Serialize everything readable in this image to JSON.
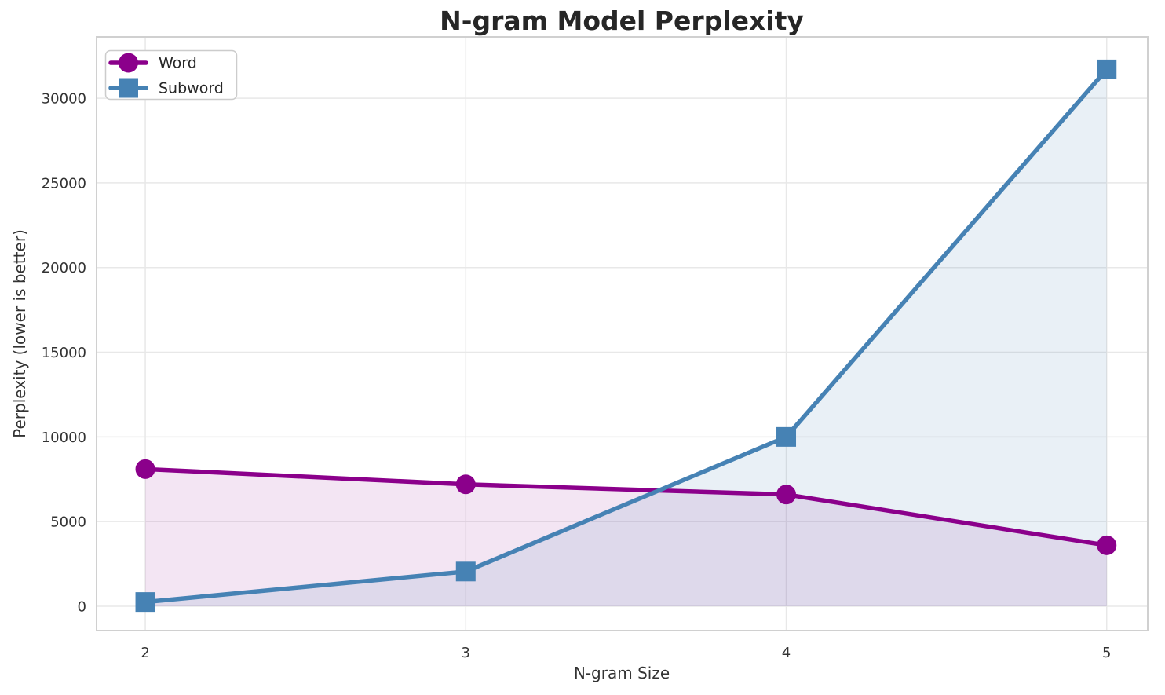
{
  "chart_data": {
    "type": "line",
    "title": "N-gram Model Perplexity",
    "xlabel": "N-gram Size",
    "ylabel": "Perplexity (lower is better)",
    "x": [
      2,
      3,
      4,
      5
    ],
    "series": [
      {
        "name": "Word",
        "marker": "circle",
        "color": "#8B008B",
        "fill_alpha": 0.1,
        "values": [
          8100,
          7200,
          6600,
          3600
        ]
      },
      {
        "name": "Subword",
        "marker": "square",
        "color": "#4682B4",
        "fill_alpha": 0.12,
        "values": [
          250,
          2050,
          10000,
          31700
        ]
      }
    ],
    "xticks": [
      "2",
      "3",
      "4",
      "5"
    ],
    "xtick_values": [
      2,
      3,
      4,
      5
    ],
    "yticks": [
      "0",
      "5000",
      "10000",
      "15000",
      "20000",
      "25000",
      "30000"
    ],
    "ytick_values": [
      0,
      5000,
      10000,
      15000,
      20000,
      25000,
      30000
    ],
    "xlim": [
      1.848,
      5.128
    ],
    "ylim": [
      -1437,
      33620
    ],
    "grid": true,
    "area_fill_baseline": 0,
    "legend_position": "upper left"
  },
  "colors": {
    "background": "#ffffff",
    "grid": "#e8e8e8",
    "spine": "#d0d0d0",
    "text": "#333333",
    "title": "#262626",
    "legend_border": "#cccccc"
  }
}
